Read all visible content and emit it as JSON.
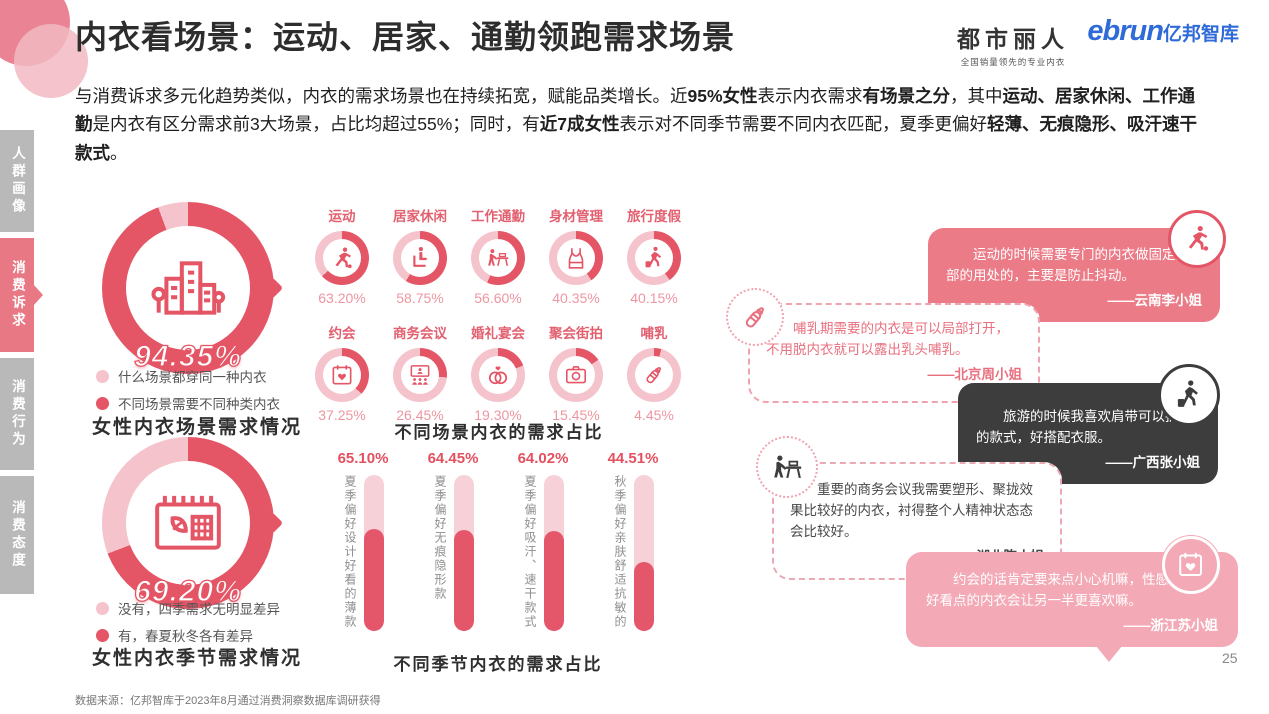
{
  "colors": {
    "accent": "#e45666",
    "light": "#f5c3cb",
    "salmon": "#ec7b88",
    "pink": "#f3aab6",
    "dark": "#3d3d3d",
    "gray_tab": "#b9b9b9",
    "active_tab": "#e87884",
    "logo_blue": "#2f6bd8"
  },
  "header": {
    "title": "内衣看场景：运动、居家、通勤领跑需求场景",
    "brand_primary": "都市丽人",
    "brand_primary_sub": "全国销量领先的专业内衣",
    "brand_secondary": "ebrun",
    "brand_secondary_suffix": "亿邦智库"
  },
  "intro": {
    "segments": [
      {
        "text": "与消费诉求多元化趋势类似，内衣的需求场景也在持续拓宽，赋能品类增长。近",
        "bold": false
      },
      {
        "text": "95%女性",
        "bold": true
      },
      {
        "text": "表示内衣需求",
        "bold": false
      },
      {
        "text": "有场景之分",
        "bold": true
      },
      {
        "text": "，其中",
        "bold": false
      },
      {
        "text": "运动、居家休闲、工作通勤",
        "bold": true
      },
      {
        "text": "是内衣有区分需求前3大场景，占比均超过55%；同时，有",
        "bold": false
      },
      {
        "text": "近7成女性",
        "bold": true
      },
      {
        "text": "表示对不同季节需要不同内衣匹配，夏季更偏好",
        "bold": false
      },
      {
        "text": "轻薄、无痕隐形、吸汗速干款式",
        "bold": true
      },
      {
        "text": "。",
        "bold": false
      }
    ]
  },
  "sidebar": {
    "items": [
      {
        "label": "人群画像",
        "active": false
      },
      {
        "label": "消费诉求",
        "active": true
      },
      {
        "label": "消费行为",
        "active": false
      },
      {
        "label": "消费态度",
        "active": false
      }
    ]
  },
  "scene_donut": {
    "value": "94.35%",
    "pct": 94.35,
    "icon": "city-buildings-icon",
    "legend": [
      {
        "label": "什么场景都穿同一种内衣",
        "color": "#f5c3cb"
      },
      {
        "label": "不同场景需要不同种类内衣",
        "color": "#e45666"
      }
    ],
    "title": "女性内衣场景需求情况"
  },
  "season_donut": {
    "value": "69.20%",
    "pct": 69.2,
    "icon": "calendar-leaf-icon",
    "legend": [
      {
        "label": "没有，四季需求无明显差异",
        "color": "#f5c3cb"
      },
      {
        "label": "有，春夏秋冬各有差异",
        "color": "#e45666"
      }
    ],
    "title": "女性内衣季节需求情况"
  },
  "scenes": {
    "title": "不同场景内衣的需求占比",
    "items": [
      {
        "label": "运动",
        "value": "63.20%",
        "pct": 63.2,
        "icon": "runner-icon"
      },
      {
        "label": "居家休闲",
        "value": "58.75%",
        "pct": 58.75,
        "icon": "home-leisure-icon"
      },
      {
        "label": "工作通勤",
        "value": "56.60%",
        "pct": 56.6,
        "icon": "work-desk-icon"
      },
      {
        "label": "身材管理",
        "value": "40.35%",
        "pct": 40.35,
        "icon": "camisole-icon"
      },
      {
        "label": "旅行度假",
        "value": "40.15%",
        "pct": 40.15,
        "icon": "traveler-icon"
      },
      {
        "label": "约会",
        "value": "37.25%",
        "pct": 37.25,
        "icon": "calendar-heart-icon"
      },
      {
        "label": "商务会议",
        "value": "26.45%",
        "pct": 26.45,
        "icon": "meeting-icon"
      },
      {
        "label": "婚礼宴会",
        "value": "19.30%",
        "pct": 19.3,
        "icon": "wedding-rings-icon"
      },
      {
        "label": "聚会街拍",
        "value": "15.45%",
        "pct": 15.45,
        "icon": "camera-icon"
      },
      {
        "label": "哺乳",
        "value": "4.45%",
        "pct": 4.45,
        "icon": "baby-bottle-icon"
      }
    ]
  },
  "season_bars": {
    "title": "不同季节内衣的需求占比",
    "items": [
      {
        "value": "65.10%",
        "pct": 65.1,
        "label": "夏季偏好设计好看的薄款"
      },
      {
        "value": "64.45%",
        "pct": 64.45,
        "label": "夏季偏好无痕隐形款"
      },
      {
        "value": "64.02%",
        "pct": 64.02,
        "label": "夏季偏好吸汗、速干款式"
      },
      {
        "value": "44.51%",
        "pct": 44.51,
        "label": "秋季偏好亲肤舒适抗敏的"
      }
    ]
  },
  "quotes": [
    {
      "style": "solid-red",
      "icon": "runner-icon",
      "icon_style": "red-ring",
      "text": "运动的时候需要专门的内衣做固定胸部的用处的，主要是防止抖动。",
      "author": "——云南李小姐"
    },
    {
      "style": "dashed1",
      "icon": "baby-bottle-icon",
      "icon_style": "pink-dotted",
      "text": "哺乳期需要的内衣是可以局部打开，不用脱内衣就可以露出乳头哺乳。",
      "author": "——北京周小姐"
    },
    {
      "style": "solid-dark",
      "icon": "traveler-icon",
      "icon_style": "dark-ring",
      "text": "旅游的时候我喜欢肩带可以拆卸的款式，好搭配衣服。",
      "author": "——广西张小姐"
    },
    {
      "style": "dashed2",
      "icon": "work-desk-icon",
      "icon_style": "pink-dotted dark-glyph",
      "text": "重要的商务会议我需要塑形、聚拢效果比较好的内衣，衬得整个人精神状态态会比较好。",
      "author": "——湖北陈小姐"
    },
    {
      "style": "solid-pink",
      "icon": "calendar-heart-icon",
      "icon_style": "pink-solid",
      "text": "约会的话肯定要来点小心机嘛，性感点的，好看点的内衣会让另一半更喜欢嘛。",
      "author": "——浙江苏小姐"
    }
  ],
  "footer": {
    "source": "数据来源：亿邦智库于2023年8月通过消费洞察数据库调研获得",
    "page": "25"
  },
  "chart_data": [
    {
      "type": "pie",
      "title": "女性内衣场景需求情况",
      "labels": [
        "不同场景需要不同种类内衣",
        "什么场景都穿同一种内衣"
      ],
      "values": [
        94.35,
        5.65
      ],
      "unit": "%",
      "legend_position": "bottom"
    },
    {
      "type": "pie",
      "title": "女性内衣季节需求情况",
      "labels": [
        "有，春夏秋冬各有差异",
        "没有，四季需求无明显差异"
      ],
      "values": [
        69.2,
        30.8
      ],
      "unit": "%",
      "legend_position": "bottom"
    },
    {
      "type": "bar",
      "title": "不同场景内衣的需求占比",
      "categories": [
        "运动",
        "居家休闲",
        "工作通勤",
        "身材管理",
        "旅行度假",
        "约会",
        "商务会议",
        "婚礼宴会",
        "聚会街拍",
        "哺乳"
      ],
      "values": [
        63.2,
        58.75,
        56.6,
        40.35,
        40.15,
        37.25,
        26.45,
        19.3,
        15.45,
        4.45
      ],
      "unit": "%",
      "ylim": [
        0,
        100
      ],
      "grid": false
    },
    {
      "type": "bar",
      "title": "不同季节内衣的需求占比",
      "categories": [
        "夏季偏好设计好看的薄款",
        "夏季偏好无痕隐形款",
        "夏季偏好吸汗、速干款式",
        "秋季偏好亲肤舒适抗敏的"
      ],
      "values": [
        65.1,
        64.45,
        64.02,
        44.51
      ],
      "unit": "%",
      "ylim": [
        0,
        100
      ],
      "grid": false
    }
  ]
}
